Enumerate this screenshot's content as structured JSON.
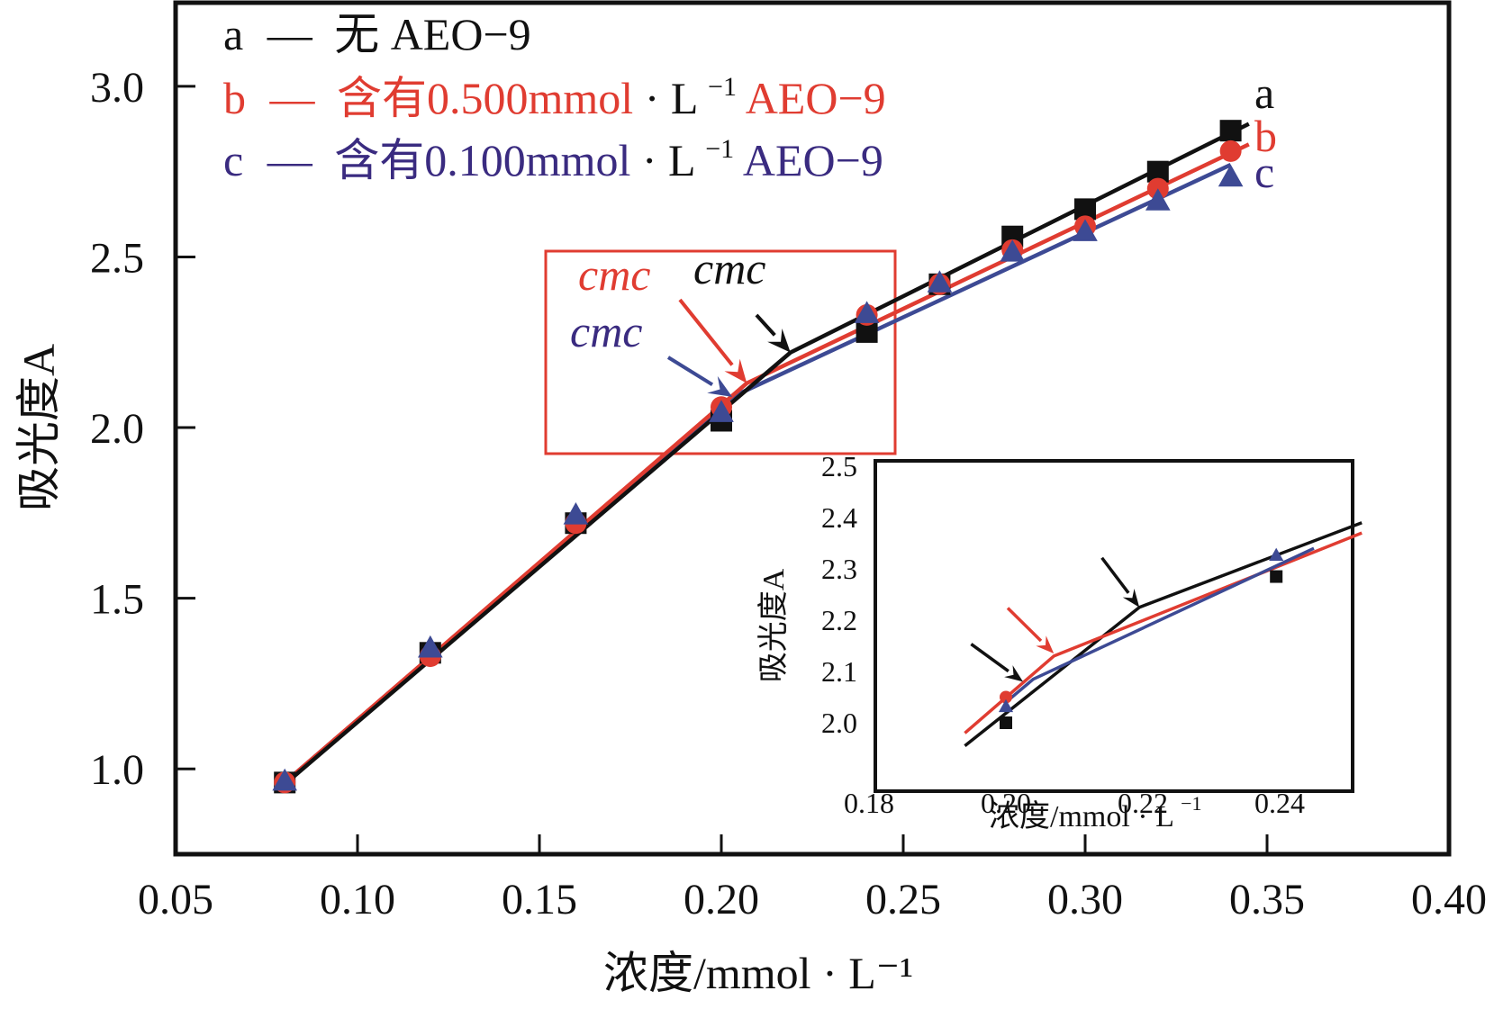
{
  "chart_data": {
    "type": "line",
    "xlabel": "浓度/mmol · L⁻¹",
    "ylabel": "吸光度A",
    "xlim": [
      0.05,
      0.4
    ],
    "ylim": [
      0.75,
      3.245
    ],
    "xticks": [
      "0.05",
      "0.10",
      "0.15",
      "0.20",
      "0.25",
      "0.30",
      "0.35",
      "0.40"
    ],
    "yticks": [
      "1.0",
      "1.5",
      "2.0",
      "2.5",
      "3.0"
    ],
    "grid": false,
    "legend": {
      "placement": "top-left",
      "entries": [
        {
          "key": "a",
          "dash": "—",
          "text": "无 AEO−9",
          "color": "#111111",
          "unit_color": "#111111"
        },
        {
          "key": "b",
          "dash": "—",
          "text": "含有0.500mmol",
          "unit": " · L",
          "sup": "−1",
          "suffix": "AEO−9",
          "color": "#e03c31",
          "unit_color": "#111111"
        },
        {
          "key": "c",
          "dash": "—",
          "text": "含有0.100mmol",
          "unit": " · L",
          "sup": "−1",
          "suffix": "AEO−9",
          "color": "#3a2b80",
          "unit_color": "#111111"
        }
      ]
    },
    "series": [
      {
        "name": "a",
        "label": "a",
        "marker": "square",
        "color": "#111111",
        "x": [
          0.08,
          0.12,
          0.16,
          0.2,
          0.24,
          0.26,
          0.28,
          0.3,
          0.32,
          0.34
        ],
        "y": [
          0.96,
          1.34,
          1.72,
          2.02,
          2.28,
          2.42,
          2.56,
          2.64,
          2.75,
          2.87
        ],
        "fit": [
          [
            0.08,
            0.955
          ],
          [
            0.219,
            2.22
          ],
          [
            0.345,
            2.89
          ]
        ],
        "cmc": 0.219
      },
      {
        "name": "b",
        "label": "b",
        "marker": "circle",
        "color": "#e03c31",
        "x": [
          0.08,
          0.12,
          0.16,
          0.2,
          0.24,
          0.26,
          0.28,
          0.3,
          0.32,
          0.34
        ],
        "y": [
          0.96,
          1.33,
          1.72,
          2.06,
          2.33,
          2.42,
          2.52,
          2.59,
          2.7,
          2.81
        ],
        "fit": [
          [
            0.08,
            0.96
          ],
          [
            0.207,
            2.13
          ],
          [
            0.345,
            2.83
          ]
        ],
        "cmc": 0.207
      },
      {
        "name": "c",
        "label": "c",
        "marker": "triangle",
        "color": "#3d4a94",
        "x": [
          0.08,
          0.12,
          0.16,
          0.2,
          0.24,
          0.26,
          0.28,
          0.3,
          0.32,
          0.34
        ],
        "y": [
          0.96,
          1.35,
          1.74,
          2.04,
          2.33,
          2.42,
          2.51,
          2.57,
          2.66,
          2.73
        ],
        "fit": [
          [
            0.08,
            0.96
          ],
          [
            0.203,
            2.09
          ],
          [
            0.34,
            2.77
          ]
        ],
        "cmc": 0.203
      }
    ],
    "annotations": [
      {
        "text": "cmc",
        "series": "a",
        "color": "#111111"
      },
      {
        "text": "cmc",
        "series": "b",
        "color": "#e03c31"
      },
      {
        "text": "cmc",
        "series": "c",
        "color": "#3a2b80"
      }
    ],
    "highlight_box": {
      "x_range": [
        0.2,
        0.245
      ],
      "y_range": [
        1.93,
        2.49
      ],
      "color": "#e03c31"
    },
    "inset": {
      "xlim": [
        0.18,
        0.25
      ],
      "ylim": [
        1.92,
        2.51
      ],
      "xticks": [
        "0.18",
        "0.20",
        "0.22",
        "0.24"
      ],
      "yticks": [
        "2.0",
        "2.1",
        "2.2",
        "2.3",
        "2.4",
        "2.5"
      ],
      "xlabel": "浓度/mmol · L",
      "xlabel_sup": "−1",
      "ylabel": "吸光度A",
      "points": [
        {
          "series": "a",
          "x": 0.2,
          "y": 2.0
        },
        {
          "series": "b",
          "x": 0.2,
          "y": 2.05
        },
        {
          "series": "c",
          "x": 0.2,
          "y": 2.03
        },
        {
          "series": "a",
          "x": 0.2395,
          "y": 2.285
        },
        {
          "series": "c",
          "x": 0.2395,
          "y": 2.325
        }
      ],
      "lines": [
        {
          "series": "a",
          "pts": [
            [
              0.194,
              1.955
            ],
            [
              0.2195,
              2.225
            ],
            [
              0.252,
              2.39
            ]
          ]
        },
        {
          "series": "b",
          "pts": [
            [
              0.194,
              1.98
            ],
            [
              0.207,
              2.13
            ],
            [
              0.252,
              2.37
            ]
          ]
        },
        {
          "series": "c",
          "pts": [
            [
              0.2,
              2.04
            ],
            [
              0.204,
              2.085
            ],
            [
              0.245,
              2.34
            ]
          ]
        }
      ],
      "cmc_arrows": [
        {
          "series": "c",
          "x": 0.2025,
          "y": 2.08,
          "color": "#111111"
        },
        {
          "series": "b",
          "x": 0.207,
          "y": 2.135,
          "color": "#e03c31"
        },
        {
          "series": "a",
          "x": 0.2195,
          "y": 2.225,
          "color": "#111111"
        }
      ]
    }
  }
}
